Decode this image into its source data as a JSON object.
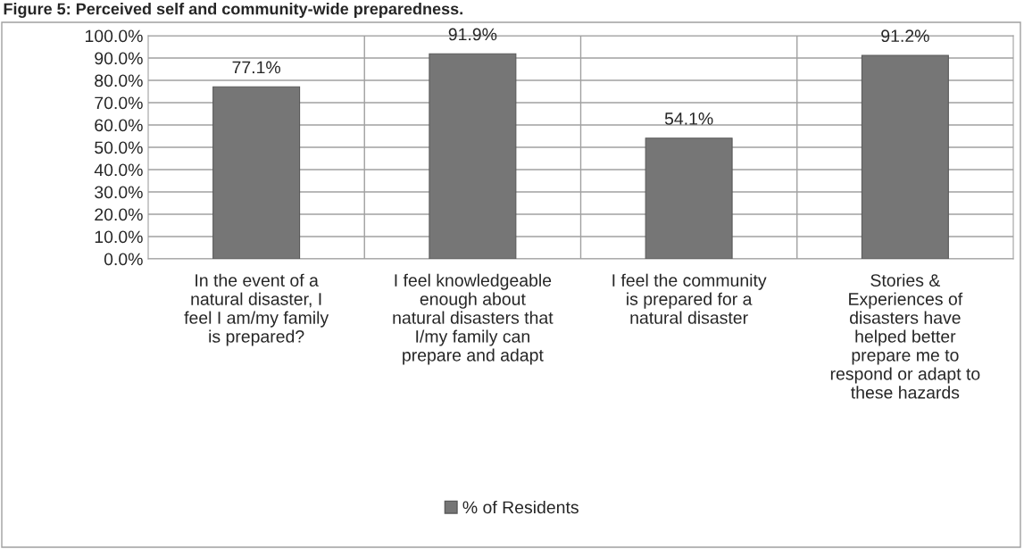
{
  "chart_data": {
    "type": "bar",
    "title": "Figure 5: Perceived self and community-wide preparedness.",
    "categories": [
      "In the event of a\nnatural disaster, I\nfeel I am/my family\nis prepared?",
      "I feel knowledgeable\nenough about\nnatural disasters that\nI/my family can\nprepare and adapt",
      "I feel the community\nis prepared for a\nnatural disaster",
      "Stories &\nExperiences of\ndisasters have\nhelped better\nprepare me to\nrespond or adapt to\nthese hazards"
    ],
    "series": [
      {
        "name": "% of Residents",
        "color": "#767676",
        "values": [
          77.1,
          91.9,
          54.1,
          91.2
        ]
      }
    ],
    "value_labels": [
      "77.1%",
      "91.9%",
      "54.1%",
      "91.2%"
    ],
    "ylim": [
      0,
      100
    ],
    "yticks": [
      {
        "value": 0,
        "label": "0.0%"
      },
      {
        "value": 10,
        "label": "10.0%"
      },
      {
        "value": 20,
        "label": "20.0%"
      },
      {
        "value": 30,
        "label": "30.0%"
      },
      {
        "value": 40,
        "label": "40.0%"
      },
      {
        "value": 50,
        "label": "50.0%"
      },
      {
        "value": 60,
        "label": "60.0%"
      },
      {
        "value": 70,
        "label": "70.0%"
      },
      {
        "value": 80,
        "label": "80.0%"
      },
      {
        "value": 90,
        "label": "90.0%"
      },
      {
        "value": 100,
        "label": "100.0%"
      }
    ],
    "grid": true,
    "legend": "bottom"
  }
}
